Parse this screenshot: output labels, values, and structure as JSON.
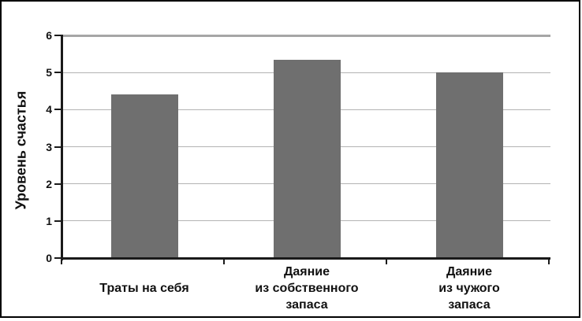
{
  "figure": {
    "frame_color": "#000000",
    "background": "#ffffff"
  },
  "chart_data": {
    "type": "bar",
    "title": "",
    "xlabel": "",
    "ylabel": "Уровень счастья",
    "categories": [
      "Траты на себя",
      "Даяние\nиз собственного\nзапаса",
      "Даяние\nиз чужого\nзапаса"
    ],
    "values": [
      4.4,
      5.35,
      5.0
    ],
    "ylim": [
      0,
      6
    ],
    "yticks": [
      0,
      1,
      2,
      3,
      4,
      5,
      6
    ],
    "grid": true,
    "legend": "none",
    "bar_color": "#6f6f6f",
    "gridline_color": "#b3b3b3",
    "top_gridline_color": "#a6a6a6",
    "axis_color": "#1a1a1a"
  }
}
